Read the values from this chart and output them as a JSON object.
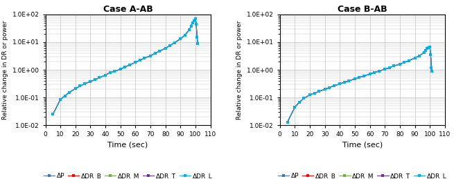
{
  "title_A": "Case A-AB",
  "title_B": "Case B-AB",
  "xlabel": "Time (sec)",
  "ylabel": "Relative change in DR or power",
  "xlim": [
    0,
    110
  ],
  "xticks": [
    0,
    10,
    20,
    30,
    40,
    50,
    60,
    70,
    80,
    90,
    100,
    110
  ],
  "ymin": 0.01,
  "ymax": 100,
  "legend_labels": [
    "ΔP",
    "ΔDR_B",
    "ΔDR_M",
    "ΔDR_T",
    "ΔDR_L"
  ],
  "legend_colors": [
    "#4472C4",
    "#FF0000",
    "#70AD47",
    "#7030A0",
    "#00B0F0"
  ],
  "background_color": "#FFFFFF",
  "grid_color": "#C0C0C0",
  "series_A": {
    "time": [
      5,
      10,
      13,
      16,
      20,
      23,
      26,
      30,
      33,
      36,
      40,
      43,
      46,
      50,
      53,
      56,
      60,
      63,
      66,
      70,
      73,
      76,
      80,
      83,
      86,
      90,
      93,
      96,
      97,
      98,
      99,
      100,
      100.5,
      101,
      101.5
    ],
    "vals": [
      0.025,
      0.085,
      0.115,
      0.155,
      0.21,
      0.26,
      0.31,
      0.38,
      0.44,
      0.52,
      0.65,
      0.78,
      0.88,
      1.05,
      1.25,
      1.5,
      1.85,
      2.2,
      2.65,
      3.2,
      3.9,
      4.7,
      6.0,
      7.5,
      9.5,
      13.0,
      18.0,
      28.0,
      38.0,
      50.0,
      60.0,
      70.0,
      45.0,
      15.0,
      9.0
    ]
  },
  "series_B": {
    "time": [
      5,
      10,
      13,
      16,
      20,
      23,
      26,
      30,
      33,
      36,
      40,
      43,
      46,
      50,
      53,
      56,
      60,
      63,
      66,
      70,
      73,
      76,
      80,
      83,
      86,
      90,
      93,
      96,
      97,
      98,
      99,
      100,
      100.5,
      101,
      101.5
    ],
    "vals": [
      0.013,
      0.045,
      0.068,
      0.093,
      0.125,
      0.145,
      0.165,
      0.2,
      0.23,
      0.265,
      0.31,
      0.36,
      0.4,
      0.47,
      0.53,
      0.6,
      0.7,
      0.8,
      0.9,
      1.05,
      1.2,
      1.38,
      1.6,
      1.85,
      2.15,
      2.7,
      3.2,
      4.2,
      5.0,
      5.8,
      6.3,
      6.5,
      3.5,
      1.2,
      0.9
    ]
  }
}
